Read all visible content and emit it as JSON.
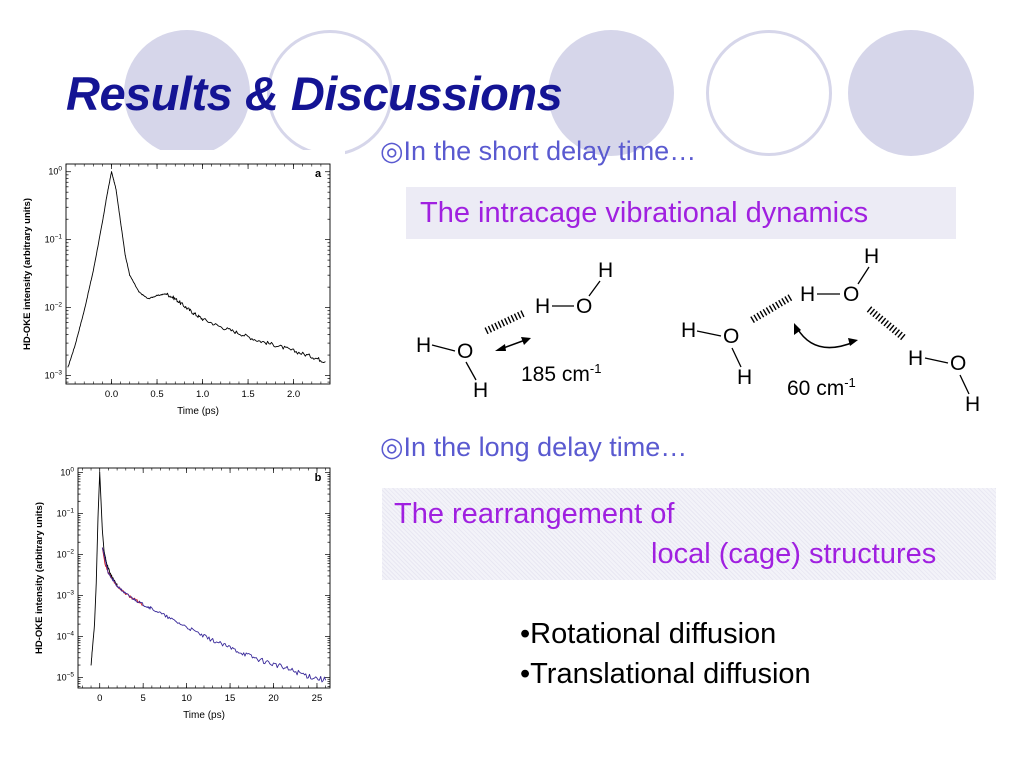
{
  "slide": {
    "title": "Results & Discussions"
  },
  "short_delay": {
    "heading": "◎In the short delay time…",
    "highlight": "The intracage vibrational dynamics"
  },
  "long_delay": {
    "heading": "◎In the long delay time…",
    "highlight_line1": "The rearrangement of",
    "highlight_line2": "local (cage) structures"
  },
  "diffusion_list": [
    "•Rotational diffusion",
    "•Translational diffusion"
  ],
  "diagram_labels": {
    "H": "H",
    "O": "O",
    "freq_185": "185 cm",
    "freq_60": "60 cm",
    "freq_exp": "-1"
  },
  "colors": {
    "title": "#141494",
    "bullet_head": "#5a5ad0",
    "highlight_text": "#a020e0",
    "highlight_bg": "#ecebf5",
    "decor": "#d6d6ea",
    "trace_black": "#000000",
    "trace_red": "#d01818",
    "trace_blue": "#3a2a9a"
  },
  "chart_data": [
    {
      "type": "line",
      "panel_label": "a",
      "xlabel": "Time (ps)",
      "ylabel": "HD-OKE intensity (arbitrary units)",
      "y_scale": "log",
      "xlim": [
        -0.5,
        2.4
      ],
      "ylim": [
        0.00075,
        1.3
      ],
      "x_ticks": [
        0.0,
        0.5,
        1.0,
        1.5,
        2.0
      ],
      "x_tick_labels": [
        "0.0",
        "0.5",
        "1.0",
        "1.5",
        "2.0"
      ],
      "y_ticks": [
        1,
        0.1,
        0.01,
        0.001
      ],
      "y_tick_labels": [
        {
          "base": "10",
          "exp": "0"
        },
        {
          "base": "10",
          "exp": "−1"
        },
        {
          "base": "10",
          "exp": "−2"
        },
        {
          "base": "10",
          "exp": "−3"
        }
      ],
      "series": [
        {
          "color": "#000000",
          "points": [
            [
              -0.48,
              0.0013
            ],
            [
              -0.4,
              0.0028
            ],
            [
              -0.3,
              0.009
            ],
            [
              -0.2,
              0.035
            ],
            [
              -0.1,
              0.18
            ],
            [
              -0.05,
              0.45
            ],
            [
              0.0,
              1.0
            ],
            [
              0.05,
              0.55
            ],
            [
              0.1,
              0.18
            ],
            [
              0.15,
              0.06
            ],
            [
              0.2,
              0.03
            ],
            [
              0.3,
              0.017
            ],
            [
              0.4,
              0.0135
            ],
            [
              0.5,
              0.015
            ],
            [
              0.6,
              0.016
            ],
            [
              0.7,
              0.0135
            ],
            [
              0.8,
              0.0105
            ],
            [
              0.9,
              0.0083
            ],
            [
              1.0,
              0.0068
            ],
            [
              1.2,
              0.0052
            ],
            [
              1.4,
              0.0042
            ],
            [
              1.6,
              0.0033
            ],
            [
              1.8,
              0.0028
            ],
            [
              2.0,
              0.0023
            ],
            [
              2.2,
              0.0019
            ],
            [
              2.35,
              0.0016
            ]
          ]
        }
      ]
    },
    {
      "type": "line",
      "panel_label": "b",
      "xlabel": "Time (ps)",
      "ylabel": "HD-OKE intensity (arbitrary units)",
      "y_scale": "log",
      "xlim": [
        -2.5,
        26.5
      ],
      "ylim": [
        5.5e-06,
        1.3
      ],
      "x_ticks": [
        0,
        5,
        10,
        15,
        20,
        25
      ],
      "x_tick_labels": [
        "0",
        "5",
        "10",
        "15",
        "20",
        "25"
      ],
      "y_ticks": [
        1,
        0.1,
        0.01,
        0.001,
        0.0001,
        1e-05
      ],
      "y_tick_labels": [
        {
          "base": "10",
          "exp": "0"
        },
        {
          "base": "10",
          "exp": "−1"
        },
        {
          "base": "10",
          "exp": "−2"
        },
        {
          "base": "10",
          "exp": "−3"
        },
        {
          "base": "10",
          "exp": "−4"
        },
        {
          "base": "10",
          "exp": "−5"
        }
      ],
      "series": [
        {
          "color": "#000000",
          "points": [
            [
              -1.0,
              2e-05
            ],
            [
              -0.6,
              0.0002
            ],
            [
              -0.4,
              0.002
            ],
            [
              -0.2,
              0.08
            ],
            [
              0.0,
              1.0
            ],
            [
              0.15,
              0.2
            ],
            [
              0.3,
              0.04
            ],
            [
              0.5,
              0.012
            ],
            [
              0.8,
              0.006
            ],
            [
              1.2,
              0.0035
            ],
            [
              1.6,
              0.0024
            ],
            [
              2.0,
              0.0018
            ]
          ]
        },
        {
          "color": "#d01818",
          "points": [
            [
              0.3,
              0.015
            ],
            [
              0.6,
              0.006
            ],
            [
              1.0,
              0.0035
            ],
            [
              1.5,
              0.0024
            ],
            [
              2.0,
              0.0017
            ],
            [
              3.0,
              0.0011
            ],
            [
              4.0,
              0.0008
            ],
            [
              5.0,
              0.0006
            ]
          ]
        },
        {
          "color": "#3a2a9a",
          "points": [
            [
              0.3,
              0.015
            ],
            [
              1.0,
              0.0034
            ],
            [
              2.0,
              0.0017
            ],
            [
              3.0,
              0.0011
            ],
            [
              4.0,
              0.0008
            ],
            [
              5.0,
              0.0006
            ],
            [
              6.0,
              0.00048
            ],
            [
              8.0,
              0.00028
            ],
            [
              10.0,
              0.00017
            ],
            [
              12.0,
              0.0001
            ],
            [
              14.0,
              6.5e-05
            ],
            [
              16.0,
              4.3e-05
            ],
            [
              18.0,
              2.9e-05
            ],
            [
              20.0,
              2.1e-05
            ],
            [
              22.0,
              1.5e-05
            ],
            [
              24.0,
              1.1e-05
            ],
            [
              26.0,
              8.5e-06
            ]
          ]
        }
      ]
    }
  ]
}
